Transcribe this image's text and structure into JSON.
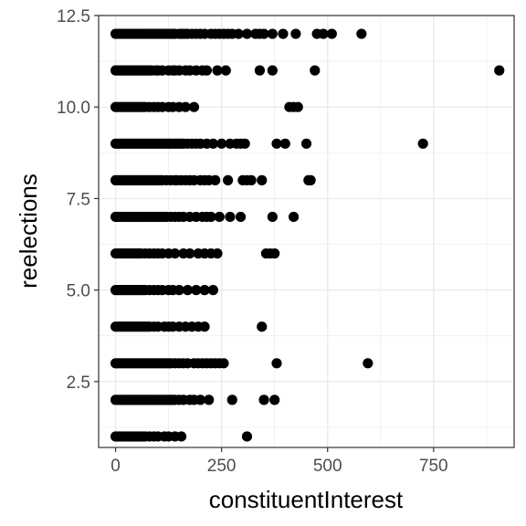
{
  "chart_data": {
    "type": "scatter",
    "title": "",
    "xlabel": "constituentInterest",
    "ylabel": "reelections",
    "xlim": [
      -40,
      940
    ],
    "ylim": [
      0.7,
      12.5
    ],
    "x_ticks": [
      0,
      250,
      500,
      750
    ],
    "x_tick_labels": [
      "0",
      "250",
      "500",
      "750"
    ],
    "y_ticks": [
      2.5,
      5.0,
      7.5,
      10.0,
      12.5
    ],
    "y_tick_labels": [
      "2.5",
      "5.0",
      "7.5",
      "10.0",
      "12.5"
    ],
    "grid": true,
    "legend": "none",
    "colors": {
      "points": "#000000",
      "grid": "#ebebeb",
      "panel_border": "#333333",
      "tick_label": "#4d4d4d"
    },
    "rows": [
      {
        "y": 12,
        "x": [
          0,
          5,
          10,
          15,
          20,
          25,
          30,
          35,
          40,
          45,
          50,
          55,
          60,
          65,
          70,
          75,
          80,
          85,
          90,
          95,
          100,
          105,
          110,
          115,
          120,
          125,
          130,
          135,
          140,
          150,
          155,
          160,
          165,
          170,
          180,
          190,
          200,
          210,
          225,
          235,
          245,
          255,
          265,
          275,
          290,
          310,
          330,
          340,
          350,
          370,
          395,
          425,
          475,
          490,
          510,
          580
        ]
      },
      {
        "y": 11,
        "x": [
          0,
          5,
          10,
          15,
          20,
          25,
          30,
          35,
          40,
          45,
          50,
          55,
          60,
          65,
          70,
          75,
          80,
          85,
          95,
          100,
          110,
          125,
          135,
          140,
          150,
          165,
          175,
          190,
          205,
          215,
          240,
          260,
          340,
          370,
          470,
          905
        ]
      },
      {
        "y": 10,
        "x": [
          0,
          5,
          10,
          15,
          20,
          25,
          30,
          35,
          40,
          45,
          50,
          55,
          60,
          65,
          70,
          80,
          90,
          100,
          110,
          125,
          135,
          150,
          165,
          185,
          410,
          420,
          430
        ]
      },
      {
        "y": 9,
        "x": [
          0,
          5,
          10,
          15,
          20,
          25,
          30,
          35,
          40,
          45,
          50,
          55,
          60,
          65,
          70,
          75,
          80,
          85,
          90,
          95,
          100,
          105,
          110,
          115,
          120,
          125,
          130,
          135,
          140,
          145,
          150,
          155,
          160,
          170,
          180,
          190,
          200,
          215,
          230,
          250,
          270,
          285,
          295,
          305,
          380,
          400,
          450,
          725
        ]
      },
      {
        "y": 8,
        "x": [
          0,
          5,
          10,
          15,
          20,
          25,
          30,
          35,
          40,
          45,
          50,
          55,
          60,
          65,
          70,
          75,
          80,
          85,
          90,
          95,
          100,
          105,
          110,
          120,
          130,
          140,
          145,
          155,
          165,
          175,
          185,
          200,
          210,
          220,
          235,
          265,
          300,
          310,
          320,
          345,
          455,
          460
        ]
      },
      {
        "y": 7,
        "x": [
          0,
          5,
          10,
          15,
          20,
          25,
          30,
          35,
          40,
          45,
          50,
          55,
          60,
          65,
          70,
          75,
          80,
          85,
          90,
          95,
          100,
          105,
          110,
          115,
          120,
          130,
          140,
          150,
          160,
          175,
          190,
          205,
          215,
          225,
          245,
          270,
          295,
          370,
          420
        ]
      },
      {
        "y": 6,
        "x": [
          0,
          5,
          10,
          15,
          20,
          25,
          30,
          35,
          40,
          45,
          50,
          55,
          60,
          70,
          80,
          90,
          100,
          110,
          125,
          140,
          160,
          175,
          195,
          210,
          225,
          240,
          355,
          365,
          375
        ]
      },
      {
        "y": 5,
        "x": [
          0,
          5,
          10,
          15,
          20,
          25,
          30,
          35,
          40,
          45,
          50,
          55,
          60,
          65,
          70,
          80,
          90,
          100,
          110,
          125,
          135,
          150,
          170,
          190,
          210,
          230
        ]
      },
      {
        "y": 4,
        "x": [
          0,
          5,
          10,
          15,
          20,
          25,
          30,
          35,
          40,
          45,
          50,
          55,
          60,
          65,
          70,
          75,
          80,
          90,
          100,
          115,
          125,
          135,
          150,
          165,
          180,
          195,
          210,
          345
        ]
      },
      {
        "y": 3,
        "x": [
          0,
          5,
          10,
          15,
          20,
          25,
          30,
          35,
          40,
          45,
          50,
          55,
          60,
          65,
          70,
          75,
          80,
          85,
          90,
          95,
          100,
          105,
          110,
          115,
          120,
          125,
          130,
          140,
          150,
          160,
          170,
          185,
          195,
          205,
          215,
          225,
          235,
          245,
          255,
          380,
          595
        ]
      },
      {
        "y": 2,
        "x": [
          0,
          5,
          10,
          15,
          20,
          25,
          30,
          35,
          40,
          45,
          50,
          55,
          60,
          65,
          70,
          75,
          80,
          85,
          90,
          95,
          100,
          105,
          110,
          115,
          120,
          125,
          130,
          135,
          140,
          150,
          160,
          175,
          185,
          200,
          220,
          275,
          350,
          375
        ]
      },
      {
        "y": 1,
        "x": [
          0,
          5,
          10,
          15,
          20,
          25,
          30,
          35,
          40,
          45,
          50,
          55,
          60,
          65,
          70,
          80,
          90,
          100,
          115,
          125,
          140,
          155,
          310
        ]
      }
    ]
  }
}
